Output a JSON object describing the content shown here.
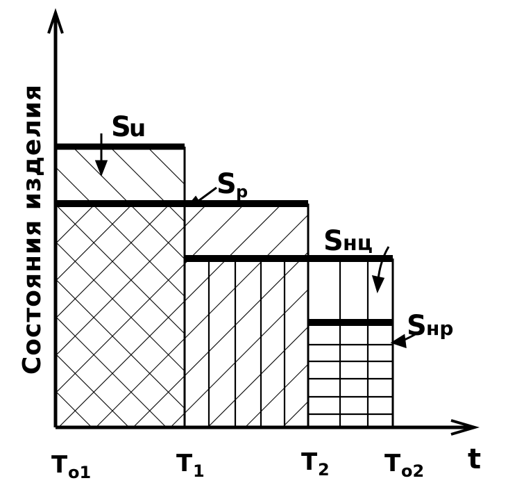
{
  "y_axis_label": "Состояния изделия",
  "x_axis_label": "t",
  "x_ticks": {
    "t01_main": "T",
    "t01_sub": "o1",
    "t1_main": "T",
    "t1_sub": "1",
    "t2_main": "T",
    "t2_sub": "2",
    "t02_main": "T",
    "t02_sub": "o2"
  },
  "levels": {
    "su_main": "S",
    "su_sub": "u",
    "sp_main": "S",
    "sp_sub": "p",
    "snu_main": "S",
    "snu_sub": "нц",
    "snp_main": "S",
    "snp_sub": "нр"
  },
  "colors": {
    "ink": "#000000",
    "background": "#ffffff"
  }
}
